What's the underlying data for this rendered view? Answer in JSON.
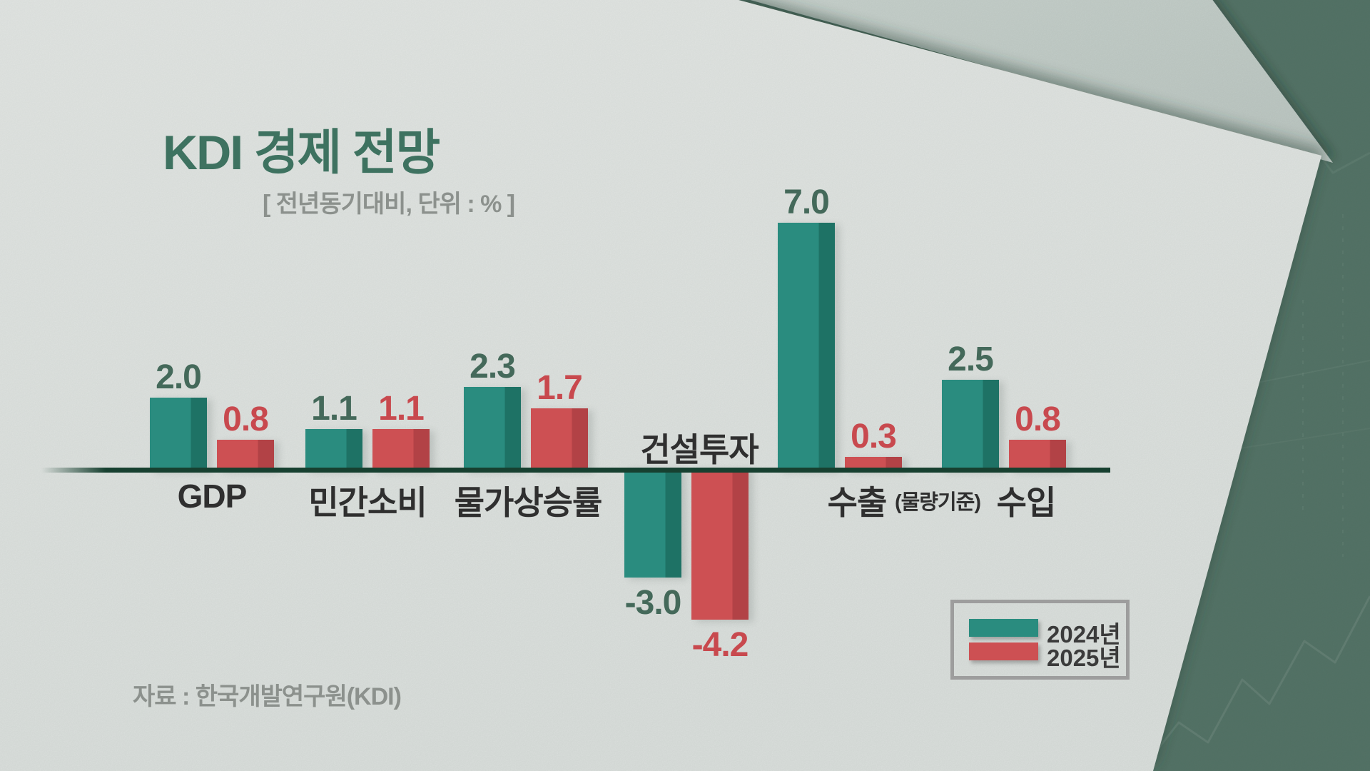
{
  "title": "KDI 경제 전망",
  "subtitle": "[ 전년동기대비, 단위 : % ]",
  "source": "자료 : 한국개발연구원(KDI)",
  "legend": {
    "items": [
      {
        "label": "2024년",
        "color": "#2a8c7f"
      },
      {
        "label": "2025년",
        "color": "#cd5053"
      }
    ]
  },
  "colors": {
    "bar_2024": "#2a8c7f",
    "bar_2024_shade": "#1e7265",
    "bar_2025": "#cd5053",
    "bar_2025_shade": "#b24246",
    "title_green": "#3e7260",
    "value_green": "#44695a",
    "value_red": "#c8494e",
    "baseline": "#174030",
    "paper": "#e4e8e5",
    "background_green": "#567669"
  },
  "chart_data": {
    "type": "bar",
    "title": "KDI 경제 전망",
    "subtitle": "[ 전년동기대비, 단위 : % ]",
    "unit": "%",
    "comparison": "전년동기대비",
    "categories": [
      "GDP",
      "민간소비",
      "물가상승률",
      "건설투자",
      "수출",
      "수입"
    ],
    "category_notes": [
      "",
      "",
      "",
      "",
      "(물량기준)",
      ""
    ],
    "series": [
      {
        "name": "2024년",
        "values": [
          2.0,
          1.1,
          2.3,
          -3.0,
          7.0,
          2.5
        ]
      },
      {
        "name": "2025년",
        "values": [
          0.8,
          1.1,
          1.7,
          -4.2,
          0.3,
          0.8
        ]
      }
    ],
    "legend_position": "bottom-right",
    "grid": false,
    "value_labels": true,
    "source": "자료 : 한국개발연구원(KDI)"
  }
}
